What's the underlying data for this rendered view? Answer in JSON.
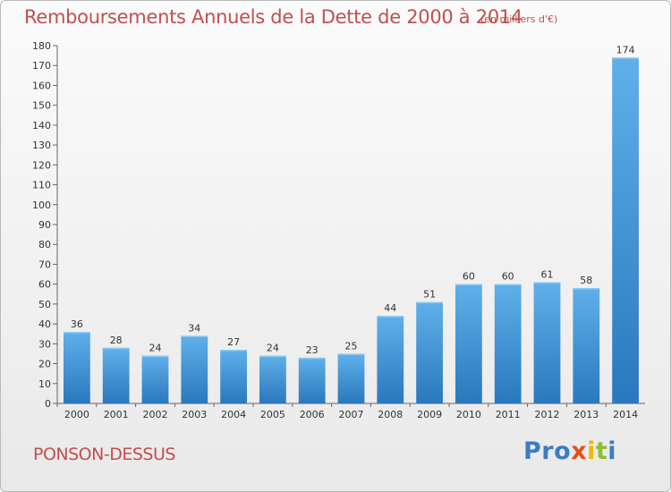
{
  "header": {
    "title": "Remboursements Annuels de la Dette de 2000 à 2014",
    "subtitle": "(en milliers d'€)"
  },
  "footer": {
    "commune": "PONSON-DESSUS",
    "logo_letters": [
      {
        "char": "P",
        "color": "#3a7cc1"
      },
      {
        "char": "r",
        "color": "#3a7cc1"
      },
      {
        "char": "o",
        "color": "#3a7cc1"
      },
      {
        "char": "x",
        "color": "#e94e1b"
      },
      {
        "char": "i",
        "color": "#f2b600"
      },
      {
        "char": "t",
        "color": "#8dbf2f"
      },
      {
        "char": "i",
        "color": "#3a7cc1"
      }
    ]
  },
  "chart_data": {
    "type": "bar",
    "title": "Remboursements Annuels de la Dette de 2000 à 2014",
    "subtitle": "(en milliers d'€)",
    "xlabel": "",
    "ylabel": "",
    "categories": [
      "2000",
      "2001",
      "2002",
      "2003",
      "2004",
      "2005",
      "2006",
      "2007",
      "2008",
      "2009",
      "2010",
      "2011",
      "2012",
      "2013",
      "2014"
    ],
    "values": [
      36,
      28,
      24,
      34,
      27,
      24,
      23,
      25,
      44,
      51,
      60,
      60,
      61,
      58,
      174
    ],
    "ylim": [
      0,
      180
    ],
    "yticks": [
      0,
      10,
      20,
      30,
      40,
      50,
      60,
      70,
      80,
      90,
      100,
      110,
      120,
      130,
      140,
      150,
      160,
      170,
      180
    ],
    "grid": false,
    "legend": "none",
    "bar_color_top": "#5fb0ea",
    "bar_color_bottom": "#2a78bd",
    "axis_color": "#666666"
  }
}
